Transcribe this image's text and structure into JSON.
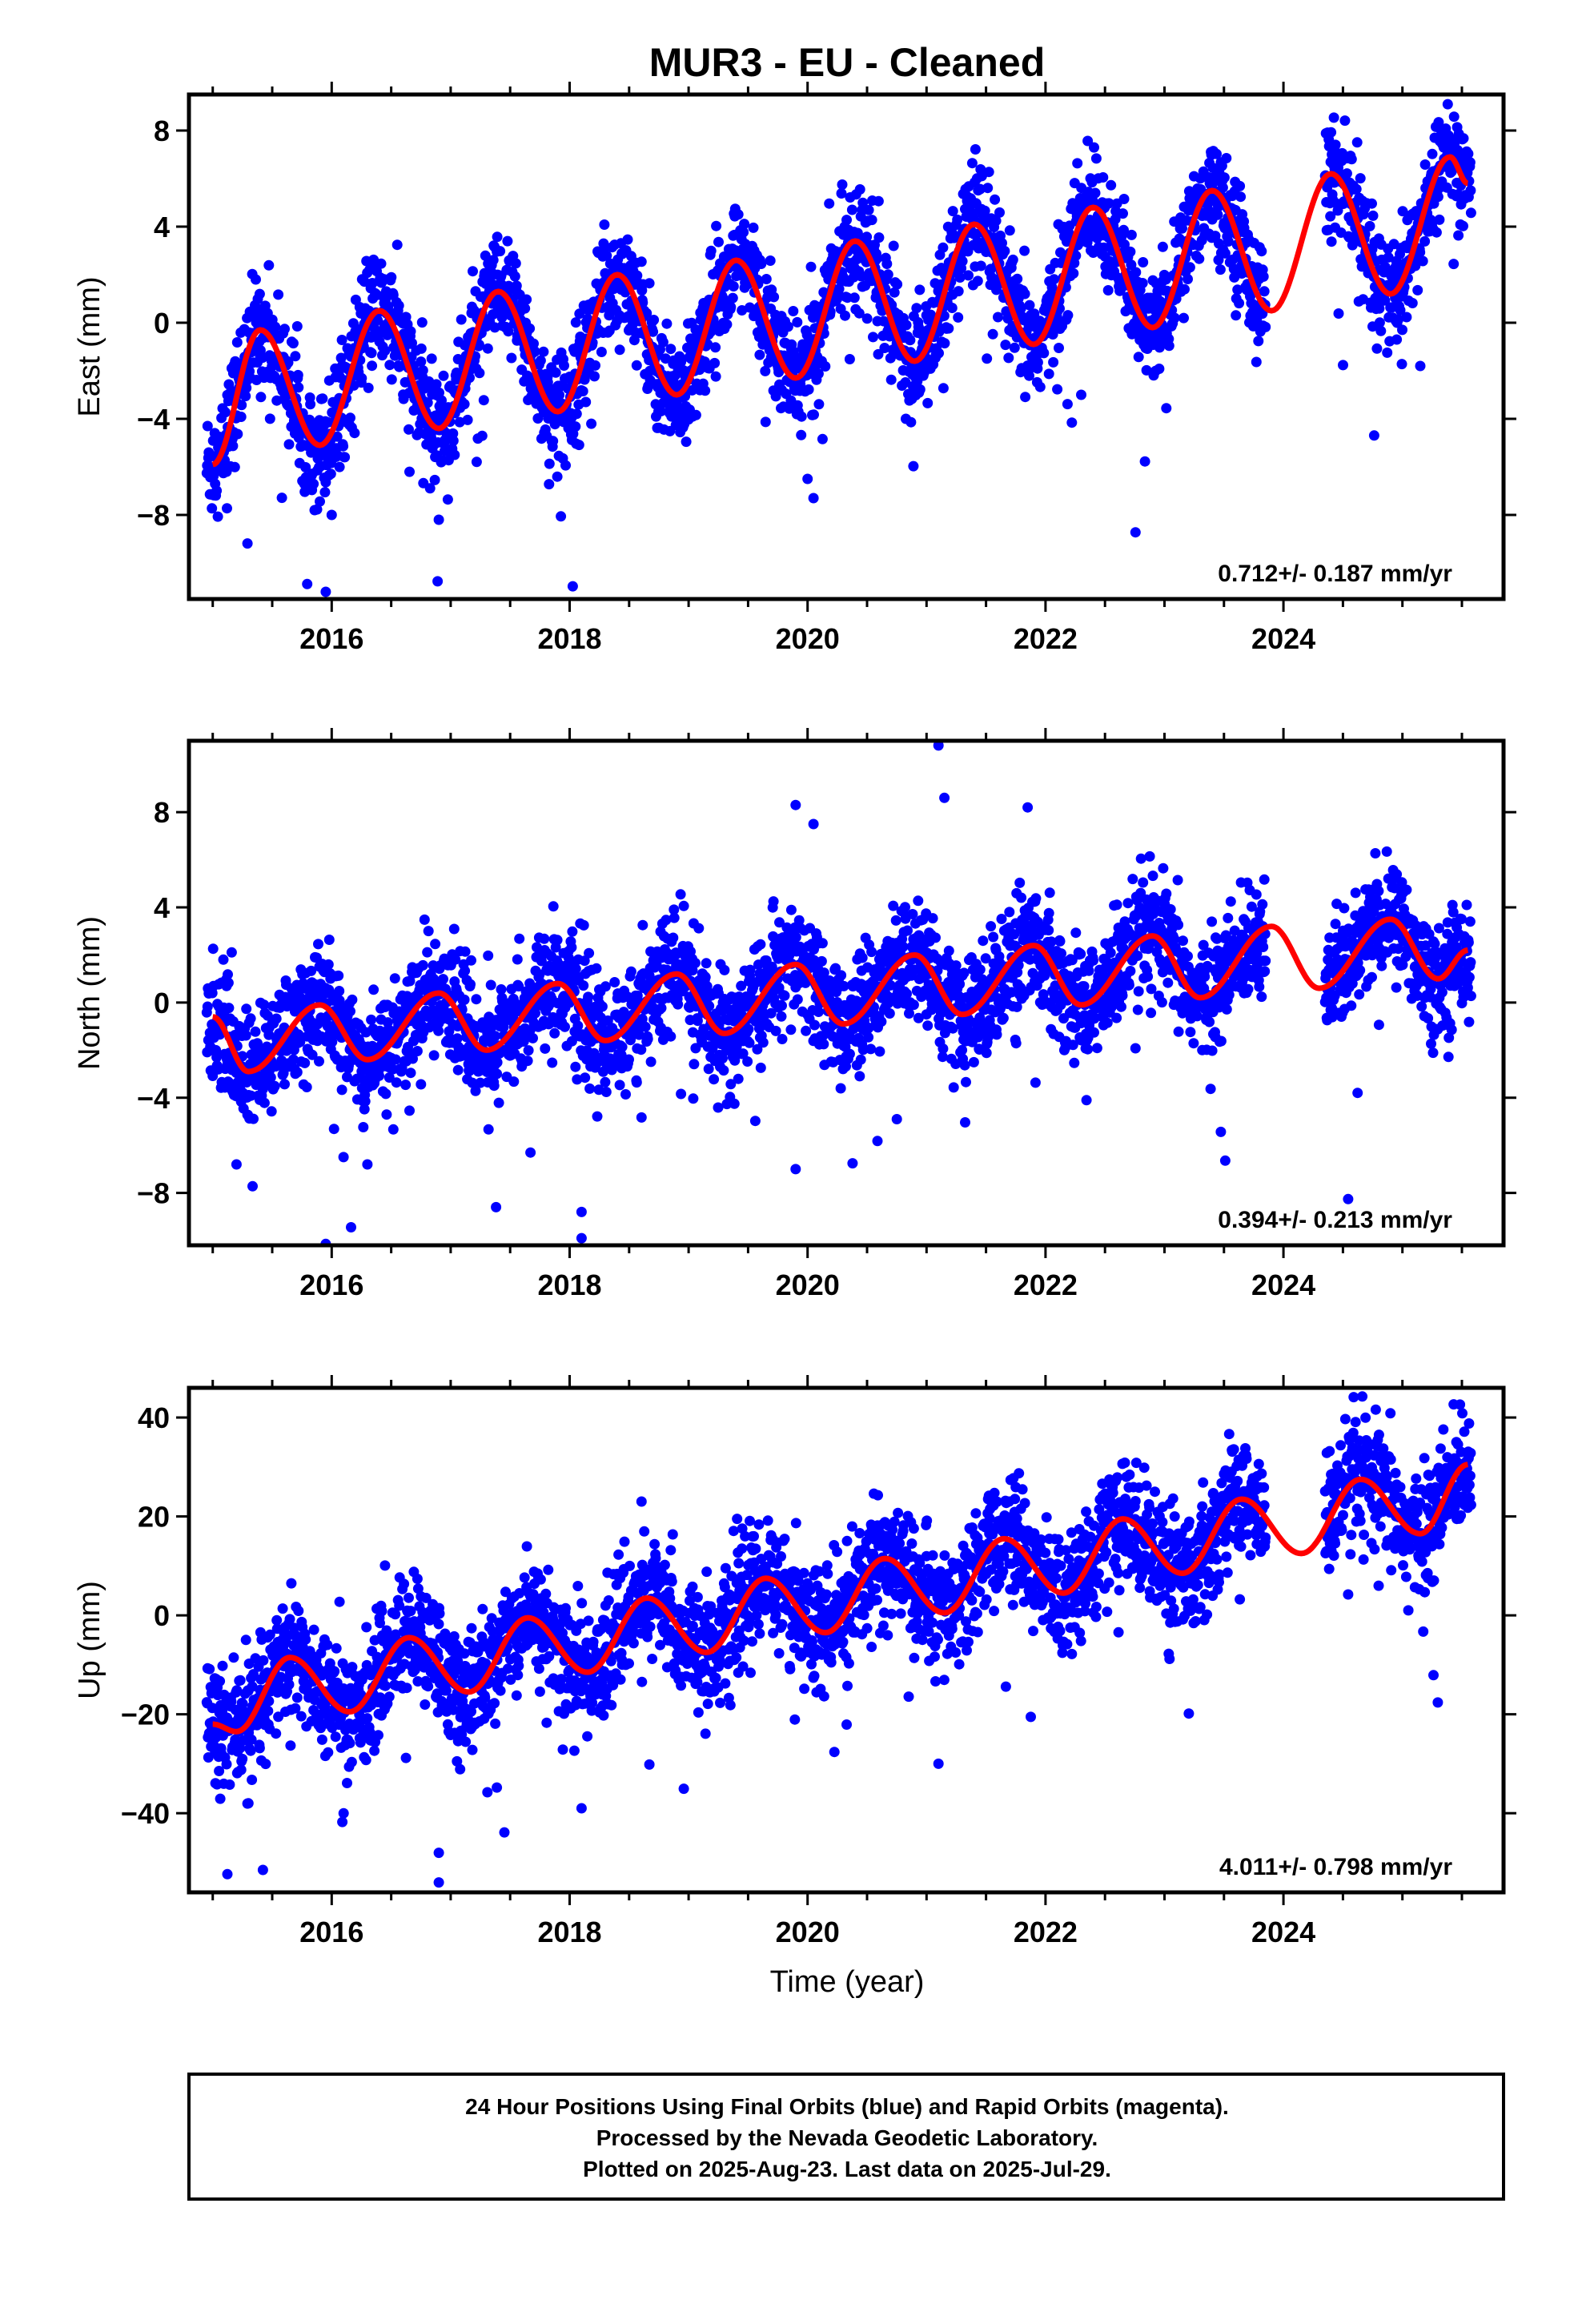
{
  "title": "MUR3  - EU - Cleaned",
  "colors": {
    "points": "#0000ff",
    "fit": "#ff0000",
    "frame": "#000000"
  },
  "xlabel": "Time (year)",
  "footer": {
    "line1": "24 Hour Positions Using Final Orbits (blue) and Rapid Orbits (magenta).",
    "line2": "Processed by the Nevada Geodetic Laboratory.",
    "line3": "Plotted on 2025-Aug-23. Last data on 2025-Jul-29."
  },
  "chart_data": [
    {
      "type": "scatter",
      "component": "east",
      "ylabel": "East (mm)",
      "rate": "0.712+/- 0.187 mm/yr",
      "xlim": [
        2014.8,
        2025.85
      ],
      "ylim": [
        -11.5,
        9.5
      ],
      "yticks": [
        -8,
        -4,
        0,
        4,
        8
      ],
      "xticks": [
        2016,
        2018,
        2020,
        2022,
        2024
      ],
      "fit": {
        "x": [
          2015.0,
          2015.4,
          2015.9,
          2016.4,
          2016.9,
          2017.4,
          2017.9,
          2018.4,
          2018.9,
          2019.4,
          2019.9,
          2020.4,
          2020.9,
          2021.4,
          2021.9,
          2022.4,
          2022.9,
          2023.4,
          2023.9,
          2024.4,
          2024.9,
          2025.4,
          2025.55
        ],
        "y": [
          -5.9,
          -0.3,
          -5.1,
          0.5,
          -4.4,
          1.3,
          -3.7,
          2.0,
          -3.0,
          2.6,
          -2.3,
          3.4,
          -1.6,
          4.1,
          -0.9,
          4.8,
          -0.2,
          5.5,
          0.5,
          6.2,
          1.2,
          6.9,
          5.8
        ]
      },
      "scatter": {
        "count": 3200,
        "intercept": -3.0,
        "slope": 0.712,
        "annual_amp": 2.6,
        "noise": 1.15,
        "gaps": [
          [
            2023.85,
            2024.35
          ]
        ],
        "outliers": [
          [
            2015.95,
            -11.2
          ],
          [
            2016.0,
            -8.0
          ],
          [
            2016.9,
            -8.2
          ],
          [
            2020.05,
            -7.3
          ],
          [
            2020.0,
            -6.5
          ],
          [
            2022.3,
            -3.0
          ],
          [
            2025.15,
            -1.8
          ]
        ]
      }
    },
    {
      "type": "scatter",
      "component": "north",
      "ylabel": "North (mm)",
      "rate": "0.394+/- 0.213 mm/yr",
      "xlim": [
        2014.8,
        2025.85
      ],
      "ylim": [
        -10.2,
        11.0
      ],
      "yticks": [
        -8,
        -4,
        0,
        4,
        8
      ],
      "xticks": [
        2016,
        2018,
        2020,
        2022,
        2024
      ],
      "fit": {
        "x": [
          2015.0,
          2015.3,
          2015.9,
          2016.3,
          2016.9,
          2017.3,
          2017.9,
          2018.3,
          2018.9,
          2019.3,
          2019.9,
          2020.3,
          2020.9,
          2021.3,
          2021.9,
          2022.3,
          2022.9,
          2023.3,
          2023.9,
          2024.3,
          2024.9,
          2025.3,
          2025.55
        ],
        "y": [
          -0.6,
          -2.9,
          -0.1,
          -2.4,
          0.4,
          -2.0,
          0.8,
          -1.6,
          1.2,
          -1.3,
          1.6,
          -0.9,
          2.0,
          -0.5,
          2.4,
          -0.1,
          2.8,
          0.2,
          3.2,
          0.6,
          3.5,
          1.0,
          2.2
        ]
      },
      "scatter": {
        "count": 3200,
        "intercept": -1.0,
        "slope": 0.394,
        "annual_amp": 1.4,
        "noise": 1.2,
        "gaps": [
          [
            2023.85,
            2024.35
          ]
        ],
        "outliers": [
          [
            2018.1,
            -9.9
          ],
          [
            2018.1,
            -8.8
          ],
          [
            2015.2,
            -6.8
          ],
          [
            2019.9,
            -7.0
          ],
          [
            2019.9,
            8.3
          ],
          [
            2020.05,
            7.5
          ],
          [
            2021.1,
            10.8
          ],
          [
            2021.15,
            8.6
          ],
          [
            2021.85,
            8.2
          ],
          [
            2020.75,
            -4.9
          ],
          [
            2016.3,
            -6.8
          ]
        ]
      }
    },
    {
      "type": "scatter",
      "component": "up",
      "ylabel": "Up (mm)",
      "rate": "4.011+/- 0.798 mm/yr",
      "xlim": [
        2014.8,
        2025.85
      ],
      "ylim": [
        -56.0,
        46.0
      ],
      "yticks": [
        -40,
        -20,
        0,
        20,
        40
      ],
      "xticks": [
        2016,
        2018,
        2020,
        2022,
        2024
      ],
      "fit": {
        "x": [
          2015.0,
          2015.2,
          2015.65,
          2016.15,
          2016.65,
          2017.15,
          2017.65,
          2018.15,
          2018.65,
          2019.15,
          2019.65,
          2020.15,
          2020.65,
          2021.15,
          2021.65,
          2022.15,
          2022.65,
          2023.15,
          2023.65,
          2024.15,
          2024.65,
          2025.15,
          2025.55
        ],
        "y": [
          -22.0,
          -23.5,
          -8.5,
          -19.5,
          -4.5,
          -15.5,
          -0.5,
          -11.5,
          3.5,
          -7.5,
          7.5,
          -3.5,
          11.5,
          0.5,
          15.5,
          4.5,
          19.5,
          8.5,
          23.5,
          12.5,
          27.5,
          16.5,
          30.5
        ]
      },
      "scatter": {
        "count": 3200,
        "intercept": -18.0,
        "slope": 4.011,
        "annual_amp": 7.5,
        "noise": 6.0,
        "gaps": [
          [
            2023.85,
            2024.35
          ]
        ],
        "outliers": [
          [
            2016.9,
            -54.0
          ],
          [
            2016.9,
            -48.0
          ],
          [
            2018.1,
            -39.0
          ],
          [
            2021.1,
            -30.0
          ],
          [
            2016.1,
            -40.0
          ],
          [
            2015.3,
            -38.0
          ],
          [
            2025.05,
            1.0
          ],
          [
            2024.8,
            6.0
          ]
        ]
      }
    }
  ]
}
